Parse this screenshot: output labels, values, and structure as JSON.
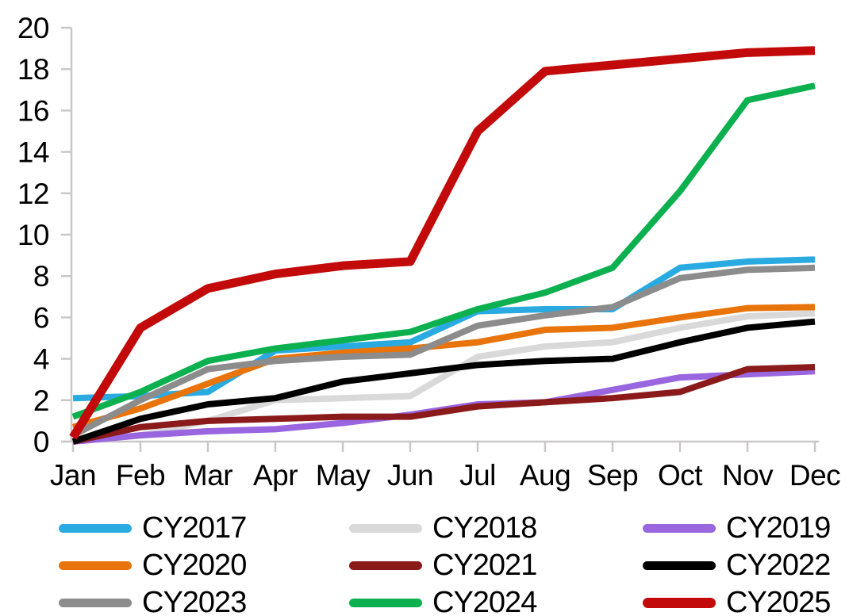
{
  "chart_data": {
    "type": "line",
    "title": "",
    "xlabel": "",
    "ylabel": "",
    "categories": [
      "Jan",
      "Feb",
      "Mar",
      "Apr",
      "May",
      "Jun",
      "Jul",
      "Aug",
      "Sep",
      "Oct",
      "Nov",
      "Dec"
    ],
    "ylim": [
      0,
      20
    ],
    "ytick_step": 2,
    "ytick_labels": [
      "0",
      "2",
      "4",
      "6",
      "8",
      "10",
      "12",
      "14",
      "16",
      "18",
      "20"
    ],
    "grid": false,
    "legend_position": "bottom",
    "axis_color": "#C9C7C7",
    "label_color": "#000000",
    "series": [
      {
        "name": "CY2017",
        "color": "#29ABE2",
        "line_width": 8,
        "values": [
          2.1,
          2.2,
          2.4,
          4.4,
          4.6,
          4.8,
          6.3,
          6.4,
          6.4,
          8.4,
          8.7,
          8.8
        ]
      },
      {
        "name": "CY2018",
        "color": "#D9D9D9",
        "line_width": 8,
        "values": [
          0.0,
          0.3,
          1.0,
          2.0,
          2.1,
          2.2,
          4.1,
          4.6,
          4.8,
          5.5,
          6.05,
          6.2
        ]
      },
      {
        "name": "CY2019",
        "color": "#9966E0",
        "line_width": 8,
        "values": [
          0.0,
          0.3,
          0.5,
          0.6,
          0.9,
          1.3,
          1.8,
          1.9,
          2.5,
          3.1,
          3.25,
          3.4
        ]
      },
      {
        "name": "CY2020",
        "color": "#E8740B",
        "line_width": 8,
        "values": [
          0.7,
          1.6,
          2.8,
          4.0,
          4.3,
          4.5,
          4.8,
          5.4,
          5.5,
          6.0,
          6.45,
          6.5
        ]
      },
      {
        "name": "CY2021",
        "color": "#8B1A1B",
        "line_width": 8,
        "values": [
          0.0,
          0.7,
          1.0,
          1.1,
          1.2,
          1.2,
          1.7,
          1.9,
          2.1,
          2.4,
          3.5,
          3.6
        ]
      },
      {
        "name": "CY2022",
        "color": "#000000",
        "line_width": 8,
        "values": [
          0.0,
          1.1,
          1.8,
          2.1,
          2.9,
          3.3,
          3.7,
          3.9,
          4.0,
          4.8,
          5.5,
          5.8
        ]
      },
      {
        "name": "CY2023",
        "color": "#8C8C8C",
        "line_width": 8,
        "values": [
          0.3,
          2.0,
          3.5,
          3.9,
          4.1,
          4.2,
          5.6,
          6.1,
          6.5,
          7.9,
          8.3,
          8.4
        ]
      },
      {
        "name": "CY2024",
        "color": "#0DB04F",
        "line_width": 8,
        "values": [
          1.2,
          2.4,
          3.9,
          4.5,
          4.9,
          5.3,
          6.4,
          7.2,
          8.4,
          12.1,
          16.5,
          17.2
        ]
      },
      {
        "name": "CY2025",
        "color": "#C20A0A",
        "line_width": 11,
        "values": [
          0.2,
          5.5,
          7.4,
          8.1,
          8.5,
          8.7,
          15.0,
          17.9,
          18.2,
          18.5,
          18.8,
          18.9
        ]
      }
    ]
  }
}
